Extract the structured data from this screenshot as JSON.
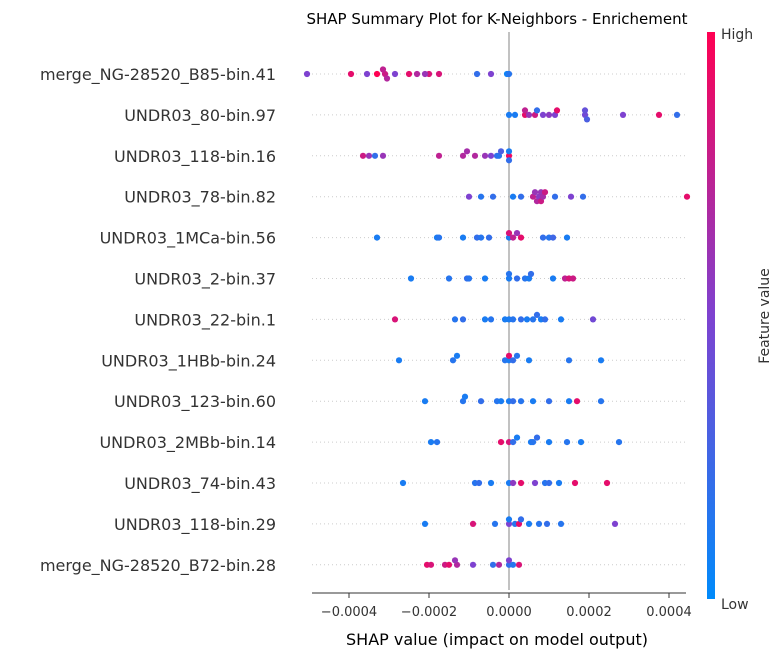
{
  "chart_data": {
    "type": "scatter",
    "title": "SHAP Summary Plot for K-Neighbors - Enrichement",
    "xlabel": "SHAP value (impact on model output)",
    "ylabel": "",
    "xlim": [
      -0.00053,
      0.0004
    ],
    "x_ticks": [
      {
        "value": -0.0004,
        "label": "−0.0004"
      },
      {
        "value": -0.0002,
        "label": "−0.0002"
      },
      {
        "value": 0.0,
        "label": "0.0000"
      },
      {
        "value": 0.0002,
        "label": "0.0002"
      },
      {
        "value": 0.0004,
        "label": "0.0004"
      }
    ],
    "colorbar": {
      "label": "Feature value",
      "high": "High",
      "low": "Low",
      "low_color": "#008bfb",
      "high_color": "#ff0052"
    },
    "grid": false,
    "zero_line": true,
    "features": [
      {
        "name": "merge_NG-28520_B85-bin.41",
        "points": [
          {
            "x": -0.000505,
            "f": 0.5
          },
          {
            "x": -0.000395,
            "f": 0.9
          },
          {
            "x": -0.000355,
            "f": 0.5
          },
          {
            "x": -0.00033,
            "f": 1.0
          },
          {
            "x": -0.00031,
            "f": 0.8
          },
          {
            "x": -0.000315,
            "f": 0.75
          },
          {
            "x": -0.000305,
            "f": 0.7
          },
          {
            "x": -0.000285,
            "f": 0.5
          },
          {
            "x": -0.00023,
            "f": 0.7
          },
          {
            "x": -0.0002,
            "f": 0.85
          },
          {
            "x": -0.00021,
            "f": 0.6
          },
          {
            "x": -0.00025,
            "f": 0.9
          },
          {
            "x": -0.000175,
            "f": 0.85
          },
          {
            "x": -8e-05,
            "f": 0.2
          },
          {
            "x": -4.5e-05,
            "f": 0.5
          },
          {
            "x": -5e-06,
            "f": 0.05
          },
          {
            "x": 0.0,
            "f": 0.15
          }
        ]
      },
      {
        "name": "UNDR03_80-bin.97",
        "points": [
          {
            "x": 0.0,
            "f": 0.1
          },
          {
            "x": 1.5e-05,
            "f": 0.1
          },
          {
            "x": 4e-05,
            "f": 0.9
          },
          {
            "x": 4e-05,
            "f": 0.75
          },
          {
            "x": 5e-05,
            "f": 0.6
          },
          {
            "x": 6.5e-05,
            "f": 0.8
          },
          {
            "x": 7e-05,
            "f": 0.2
          },
          {
            "x": 8.5e-05,
            "f": 0.5
          },
          {
            "x": 0.000115,
            "f": 0.5
          },
          {
            "x": 0.0001,
            "f": 0.55
          },
          {
            "x": 0.00012,
            "f": 0.9
          },
          {
            "x": 0.00019,
            "f": 0.45
          },
          {
            "x": 0.00019,
            "f": 0.4
          },
          {
            "x": 0.000195,
            "f": 0.3
          },
          {
            "x": 0.000285,
            "f": 0.5
          },
          {
            "x": 0.000375,
            "f": 0.9
          },
          {
            "x": 0.00042,
            "f": 0.2
          }
        ]
      },
      {
        "name": "UNDR03_118-bin.16",
        "points": [
          {
            "x": -0.000365,
            "f": 0.8
          },
          {
            "x": -0.00035,
            "f": 0.6
          },
          {
            "x": -0.000335,
            "f": 0.2
          },
          {
            "x": -0.000315,
            "f": 0.6
          },
          {
            "x": -0.000175,
            "f": 0.75
          },
          {
            "x": -0.000115,
            "f": 0.7
          },
          {
            "x": -0.000105,
            "f": 0.65
          },
          {
            "x": -8.5e-05,
            "f": 0.7
          },
          {
            "x": -6e-05,
            "f": 0.6
          },
          {
            "x": -4.5e-05,
            "f": 0.5
          },
          {
            "x": -3e-05,
            "f": 0.2
          },
          {
            "x": -2.5e-05,
            "f": 0.15
          },
          {
            "x": -2e-05,
            "f": 0.3
          },
          {
            "x": 0.0,
            "f": 0.95
          },
          {
            "x": 0.0,
            "f": 0.1
          },
          {
            "x": 0.0,
            "f": 0.2
          }
        ]
      },
      {
        "name": "UNDR03_78-bin.82",
        "points": [
          {
            "x": -0.0001,
            "f": 0.5
          },
          {
            "x": -7e-05,
            "f": 0.15
          },
          {
            "x": -4e-05,
            "f": 0.2
          },
          {
            "x": 1e-05,
            "f": 0.1
          },
          {
            "x": 3e-05,
            "f": 0.2
          },
          {
            "x": 6e-05,
            "f": 0.75
          },
          {
            "x": 6.5e-05,
            "f": 0.6
          },
          {
            "x": 7e-05,
            "f": 0.7
          },
          {
            "x": 7.5e-05,
            "f": 0.55
          },
          {
            "x": 8e-05,
            "f": 0.6
          },
          {
            "x": 8e-05,
            "f": 0.8
          },
          {
            "x": 8.5e-05,
            "f": 0.65
          },
          {
            "x": 9e-05,
            "f": 0.8
          },
          {
            "x": 0.000115,
            "f": 0.2
          },
          {
            "x": 0.000155,
            "f": 0.5
          },
          {
            "x": 0.000185,
            "f": 0.2
          },
          {
            "x": 0.000445,
            "f": 0.9
          }
        ]
      },
      {
        "name": "UNDR03_1MCa-bin.56",
        "points": [
          {
            "x": -0.00033,
            "f": 0.1
          },
          {
            "x": -0.00018,
            "f": 0.1
          },
          {
            "x": -0.000175,
            "f": 0.15
          },
          {
            "x": -0.000115,
            "f": 0.1
          },
          {
            "x": -8e-05,
            "f": 0.2
          },
          {
            "x": -7e-05,
            "f": 0.15
          },
          {
            "x": -5e-05,
            "f": 0.2
          },
          {
            "x": 0.0,
            "f": 0.1
          },
          {
            "x": 0.0,
            "f": 0.85
          },
          {
            "x": 1e-05,
            "f": 0.75
          },
          {
            "x": 2e-05,
            "f": 0.6
          },
          {
            "x": 3e-05,
            "f": 0.9
          },
          {
            "x": 8.5e-05,
            "f": 0.2
          },
          {
            "x": 0.0001,
            "f": 0.15
          },
          {
            "x": 0.00011,
            "f": 0.25
          },
          {
            "x": 0.000145,
            "f": 0.1
          }
        ]
      },
      {
        "name": "UNDR03_2-bin.37",
        "points": [
          {
            "x": -0.000245,
            "f": 0.1
          },
          {
            "x": -0.00015,
            "f": 0.15
          },
          {
            "x": -0.000105,
            "f": 0.2
          },
          {
            "x": -0.0001,
            "f": 0.15
          },
          {
            "x": -6e-05,
            "f": 0.1
          },
          {
            "x": 0.0,
            "f": 0.1
          },
          {
            "x": 0.0,
            "f": 0.15
          },
          {
            "x": 2e-05,
            "f": 0.2
          },
          {
            "x": 4e-05,
            "f": 0.15
          },
          {
            "x": 5e-05,
            "f": 0.1
          },
          {
            "x": 5.5e-05,
            "f": 0.2
          },
          {
            "x": 0.00011,
            "f": 0.1
          },
          {
            "x": 0.00014,
            "f": 0.75
          },
          {
            "x": 0.00015,
            "f": 0.85
          },
          {
            "x": 0.00016,
            "f": 0.8
          }
        ]
      },
      {
        "name": "UNDR03_22-bin.1",
        "points": [
          {
            "x": -0.000285,
            "f": 0.85
          },
          {
            "x": -0.000135,
            "f": 0.15
          },
          {
            "x": -0.000115,
            "f": 0.2
          },
          {
            "x": -6e-05,
            "f": 0.1
          },
          {
            "x": -4.5e-05,
            "f": 0.15
          },
          {
            "x": -1e-05,
            "f": 0.1
          },
          {
            "x": 0.0,
            "f": 0.1
          },
          {
            "x": 1e-05,
            "f": 0.15
          },
          {
            "x": 3e-05,
            "f": 0.2
          },
          {
            "x": 4.5e-05,
            "f": 0.1
          },
          {
            "x": 6e-05,
            "f": 0.15
          },
          {
            "x": 7e-05,
            "f": 0.2
          },
          {
            "x": 8e-05,
            "f": 0.1
          },
          {
            "x": 9e-05,
            "f": 0.2
          },
          {
            "x": 0.00013,
            "f": 0.1
          },
          {
            "x": 0.00021,
            "f": 0.45
          }
        ]
      },
      {
        "name": "UNDR03_1HBb-bin.24",
        "points": [
          {
            "x": -0.000275,
            "f": 0.1
          },
          {
            "x": -0.00014,
            "f": 0.15
          },
          {
            "x": -0.00013,
            "f": 0.1
          },
          {
            "x": -1e-05,
            "f": 0.15
          },
          {
            "x": 0.0,
            "f": 0.1
          },
          {
            "x": 0.0,
            "f": 0.9
          },
          {
            "x": 1e-05,
            "f": 0.2
          },
          {
            "x": 2e-05,
            "f": 0.15
          },
          {
            "x": 5e-05,
            "f": 0.1
          },
          {
            "x": 0.00015,
            "f": 0.15
          },
          {
            "x": 0.00023,
            "f": 0.1
          }
        ]
      },
      {
        "name": "UNDR03_123-bin.60",
        "points": [
          {
            "x": -0.00021,
            "f": 0.1
          },
          {
            "x": -0.000115,
            "f": 0.15
          },
          {
            "x": -0.00011,
            "f": 0.1
          },
          {
            "x": -7e-05,
            "f": 0.2
          },
          {
            "x": -3e-05,
            "f": 0.15
          },
          {
            "x": -2e-05,
            "f": 0.1
          },
          {
            "x": 0.0,
            "f": 0.1
          },
          {
            "x": 1e-05,
            "f": 0.2
          },
          {
            "x": 3e-05,
            "f": 0.15
          },
          {
            "x": 6e-05,
            "f": 0.1
          },
          {
            "x": 0.0001,
            "f": 0.2
          },
          {
            "x": 0.00015,
            "f": 0.1
          },
          {
            "x": 0.00017,
            "f": 0.9
          },
          {
            "x": 0.00023,
            "f": 0.15
          }
        ]
      },
      {
        "name": "UNDR03_2MBb-bin.14",
        "points": [
          {
            "x": -0.000195,
            "f": 0.1
          },
          {
            "x": -0.00018,
            "f": 0.15
          },
          {
            "x": -2e-05,
            "f": 0.9
          },
          {
            "x": 0.0,
            "f": 0.85
          },
          {
            "x": 1e-05,
            "f": 0.2
          },
          {
            "x": 2e-05,
            "f": 0.1
          },
          {
            "x": 5.5e-05,
            "f": 0.1
          },
          {
            "x": 6e-05,
            "f": 0.15
          },
          {
            "x": 7e-05,
            "f": 0.2
          },
          {
            "x": 0.0001,
            "f": 0.1
          },
          {
            "x": 0.000145,
            "f": 0.15
          },
          {
            "x": 0.00018,
            "f": 0.1
          },
          {
            "x": 0.000275,
            "f": 0.15
          }
        ]
      },
      {
        "name": "UNDR03_74-bin.43",
        "points": [
          {
            "x": -0.000265,
            "f": 0.1
          },
          {
            "x": -8.5e-05,
            "f": 0.15
          },
          {
            "x": -7.5e-05,
            "f": 0.2
          },
          {
            "x": -4.5e-05,
            "f": 0.1
          },
          {
            "x": 0.0,
            "f": 0.1
          },
          {
            "x": 1e-05,
            "f": 0.55
          },
          {
            "x": 3e-05,
            "f": 0.9
          },
          {
            "x": 6.5e-05,
            "f": 0.5
          },
          {
            "x": 9e-05,
            "f": 0.15
          },
          {
            "x": 0.0001,
            "f": 0.2
          },
          {
            "x": 0.000125,
            "f": 0.1
          },
          {
            "x": 0.000165,
            "f": 0.9
          },
          {
            "x": 0.000245,
            "f": 0.9
          }
        ]
      },
      {
        "name": "UNDR03_118-bin.29",
        "points": [
          {
            "x": -0.00021,
            "f": 0.1
          },
          {
            "x": -9e-05,
            "f": 0.85
          },
          {
            "x": -3.5e-05,
            "f": 0.15
          },
          {
            "x": 0.0,
            "f": 0.5
          },
          {
            "x": 0.0,
            "f": 0.1
          },
          {
            "x": 1.5e-05,
            "f": 0.15
          },
          {
            "x": 2.5e-05,
            "f": 0.9
          },
          {
            "x": 3e-05,
            "f": 0.2
          },
          {
            "x": 5e-05,
            "f": 0.1
          },
          {
            "x": 7.5e-05,
            "f": 0.15
          },
          {
            "x": 9.5e-05,
            "f": 0.2
          },
          {
            "x": 0.00013,
            "f": 0.15
          },
          {
            "x": 0.000265,
            "f": 0.5
          }
        ]
      },
      {
        "name": "merge_NG-28520_B72-bin.28",
        "points": [
          {
            "x": -0.000205,
            "f": 0.9
          },
          {
            "x": -0.000195,
            "f": 0.85
          },
          {
            "x": -0.00016,
            "f": 0.8
          },
          {
            "x": -0.00015,
            "f": 0.9
          },
          {
            "x": -0.00013,
            "f": 0.7
          },
          {
            "x": -0.000135,
            "f": 0.6
          },
          {
            "x": -9e-05,
            "f": 0.5
          },
          {
            "x": -4e-05,
            "f": 0.2
          },
          {
            "x": -2.5e-05,
            "f": 0.7
          },
          {
            "x": 0.0,
            "f": 0.2
          },
          {
            "x": 0.0,
            "f": 0.5
          },
          {
            "x": 1e-05,
            "f": 0.15
          },
          {
            "x": 2.5e-05,
            "f": 0.85
          }
        ]
      }
    ]
  }
}
